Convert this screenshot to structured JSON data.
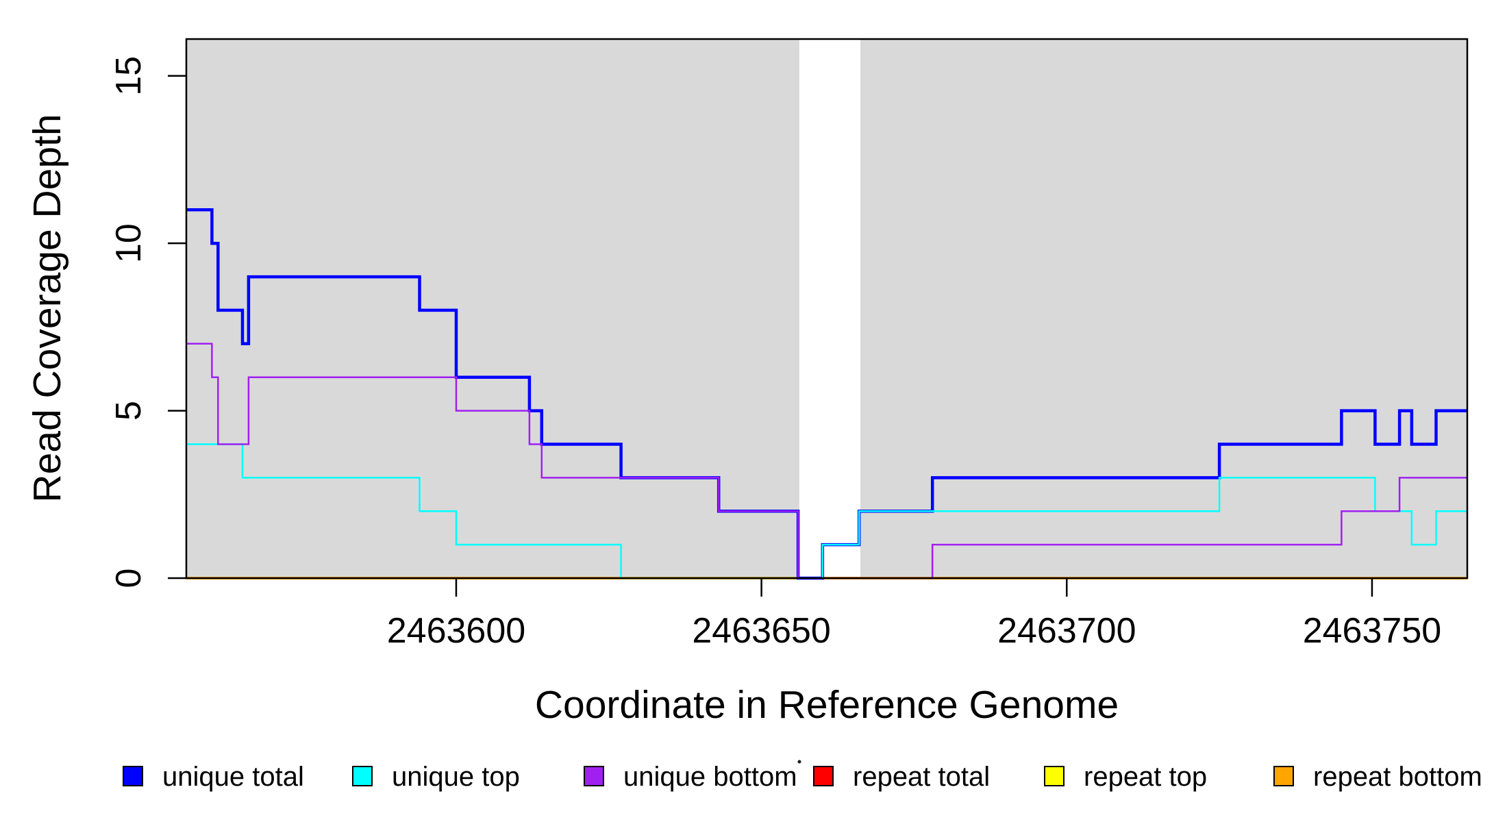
{
  "figure": {
    "background": "#ffffff",
    "plot_background": "#ffffff",
    "shade_color": "#d9d9d9",
    "axis_color": "#000000"
  },
  "chart_data": {
    "type": "line",
    "subtype": "step",
    "title": "",
    "xlabel": "Coordinate in Reference Genome",
    "ylabel": "Read Coverage Depth",
    "xlim": [
      2463555.8,
      2463765.6
    ],
    "ylim": [
      0,
      16.1
    ],
    "grid": "off",
    "x_ticks": [
      {
        "value": 2463600,
        "label": "2463600"
      },
      {
        "value": 2463650,
        "label": "2463650"
      },
      {
        "value": 2463700,
        "label": "2463700"
      },
      {
        "value": 2463750,
        "label": "2463750"
      }
    ],
    "y_ticks": [
      {
        "value": 0,
        "label": "0"
      },
      {
        "value": 5,
        "label": "5"
      },
      {
        "value": 10,
        "label": "10"
      },
      {
        "value": 15,
        "label": "15"
      }
    ],
    "shaded_regions": [
      {
        "from": 2463555.8,
        "to": 2463656.2,
        "color": "#d9d9d9"
      },
      {
        "from": 2463666.2,
        "to": 2463765.6,
        "color": "#d9d9d9"
      }
    ],
    "series": [
      {
        "name": "unique total",
        "color": "#0000ff",
        "width": 4.5,
        "steps": [
          [
            2463555.8,
            11
          ],
          [
            2463560,
            10
          ],
          [
            2463561,
            8
          ],
          [
            2463565,
            7
          ],
          [
            2463566,
            9
          ],
          [
            2463594,
            8
          ],
          [
            2463600,
            6
          ],
          [
            2463612,
            5
          ],
          [
            2463614,
            4
          ],
          [
            2463627,
            3
          ],
          [
            2463643,
            2
          ],
          [
            2463656,
            0
          ],
          [
            2463660,
            1
          ],
          [
            2463666,
            2
          ],
          [
            2463678,
            3
          ],
          [
            2463725,
            4
          ],
          [
            2463745,
            5
          ],
          [
            2463750.5,
            4
          ],
          [
            2463754.5,
            5
          ],
          [
            2463756.5,
            4
          ],
          [
            2463760.5,
            5
          ]
        ]
      },
      {
        "name": "unique top",
        "color": "#00ffff",
        "width": 2.5,
        "steps": [
          [
            2463555.8,
            4
          ],
          [
            2463565,
            3
          ],
          [
            2463594,
            2
          ],
          [
            2463600,
            1
          ],
          [
            2463627,
            0
          ],
          [
            2463660,
            1
          ],
          [
            2463666,
            2
          ],
          [
            2463725,
            3
          ],
          [
            2463750.5,
            2
          ],
          [
            2463756.5,
            1
          ],
          [
            2463760.5,
            2
          ]
        ]
      },
      {
        "name": "unique bottom",
        "color": "#a020f0",
        "width": 2.5,
        "steps": [
          [
            2463555.8,
            7
          ],
          [
            2463560,
            6
          ],
          [
            2463561,
            4
          ],
          [
            2463566,
            6
          ],
          [
            2463600,
            5
          ],
          [
            2463612,
            4
          ],
          [
            2463614,
            3
          ],
          [
            2463643,
            2
          ],
          [
            2463656,
            0
          ],
          [
            2463678,
            1
          ],
          [
            2463745,
            2
          ],
          [
            2463754.5,
            3
          ]
        ]
      },
      {
        "name": "repeat total",
        "color": "#ff0000",
        "width": 2.5,
        "steps": [
          [
            2463555.8,
            0
          ]
        ]
      },
      {
        "name": "repeat top",
        "color": "#ffff00",
        "width": 2.5,
        "steps": [
          [
            2463555.8,
            0
          ]
        ]
      },
      {
        "name": "repeat bottom",
        "color": "#ffa500",
        "width": 4,
        "steps": [
          [
            2463555.8,
            0
          ]
        ]
      }
    ],
    "draw_order": [
      "repeat total",
      "repeat top",
      "repeat bottom",
      "unique total",
      "unique top",
      "unique bottom"
    ],
    "legend": {
      "position": "bottom",
      "items": [
        {
          "label": "unique total",
          "color": "#0000ff"
        },
        {
          "label": "unique top",
          "color": "#00ffff"
        },
        {
          "label": "unique bottom",
          "color": "#a020f0"
        },
        {
          "label": "repeat total",
          "color": "#ff0000"
        },
        {
          "label": "repeat top",
          "color": "#ffff00"
        },
        {
          "label": "repeat bottom",
          "color": "#ffa500"
        }
      ]
    }
  }
}
